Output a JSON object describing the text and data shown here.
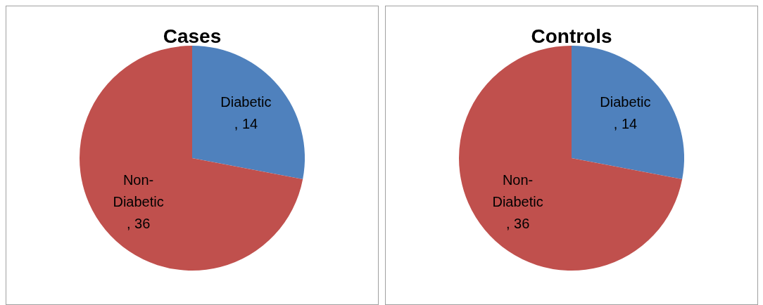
{
  "chart_data": [
    {
      "type": "pie",
      "title": "Cases",
      "categories": [
        "Diabetic",
        "Non-Diabetic"
      ],
      "values": [
        14,
        36
      ],
      "value_labels": [
        ", 14",
        ", 36"
      ],
      "colors": [
        "#4f81bd",
        "#c0504d"
      ]
    },
    {
      "type": "pie",
      "title": "Controls",
      "categories": [
        "Diabetic",
        "Non-Diabetic"
      ],
      "values": [
        14,
        36
      ],
      "value_labels": [
        ", 14",
        ", 36"
      ],
      "colors": [
        "#4f81bd",
        "#c0504d"
      ]
    }
  ]
}
